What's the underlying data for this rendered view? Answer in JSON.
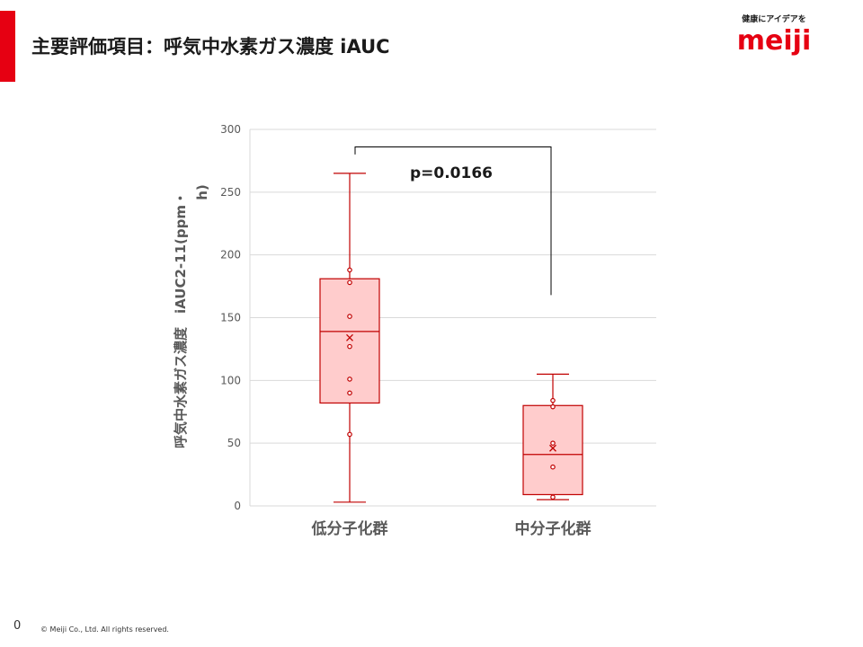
{
  "slide": {
    "title": "主要評価項目：呼気中水素ガス濃度 iAUC",
    "page_number": "0",
    "copyright": "© Meiji Co., Ltd. All rights reserved."
  },
  "logo": {
    "tagline": "健康にアイデアを",
    "wordmark": "meiji",
    "color": "#e60012"
  },
  "colors": {
    "accent": "#e60012",
    "box_fill": "#ffcccc",
    "box_stroke": "#c00000",
    "grid": "#d9d9d9",
    "axis_text": "#595959"
  },
  "chart_data": {
    "type": "box",
    "title": "",
    "ylabel_lines": [
      "呼気中水素ガス濃度　iAUC2-11(ppm・",
      "h)"
    ],
    "ylim": [
      0,
      300
    ],
    "yticks": [
      0,
      50,
      100,
      150,
      200,
      250,
      300
    ],
    "grid": true,
    "categories": [
      "低分子化群",
      "中分子化群"
    ],
    "boxes": [
      {
        "category": "低分子化群",
        "min": 3,
        "q1": 82,
        "median": 139,
        "q3": 181,
        "max": 265,
        "mean": 134,
        "points": [
          57,
          90,
          101,
          127,
          151,
          178,
          188
        ]
      },
      {
        "category": "中分子化群",
        "min": 5,
        "q1": 9,
        "median": 41,
        "q3": 80,
        "max": 105,
        "mean": 46,
        "points": [
          7,
          31,
          50,
          79,
          84
        ]
      }
    ],
    "annotation": {
      "text": "p=0.0166",
      "bracket_top": 286,
      "left_end": 280,
      "right_end": 168
    }
  }
}
